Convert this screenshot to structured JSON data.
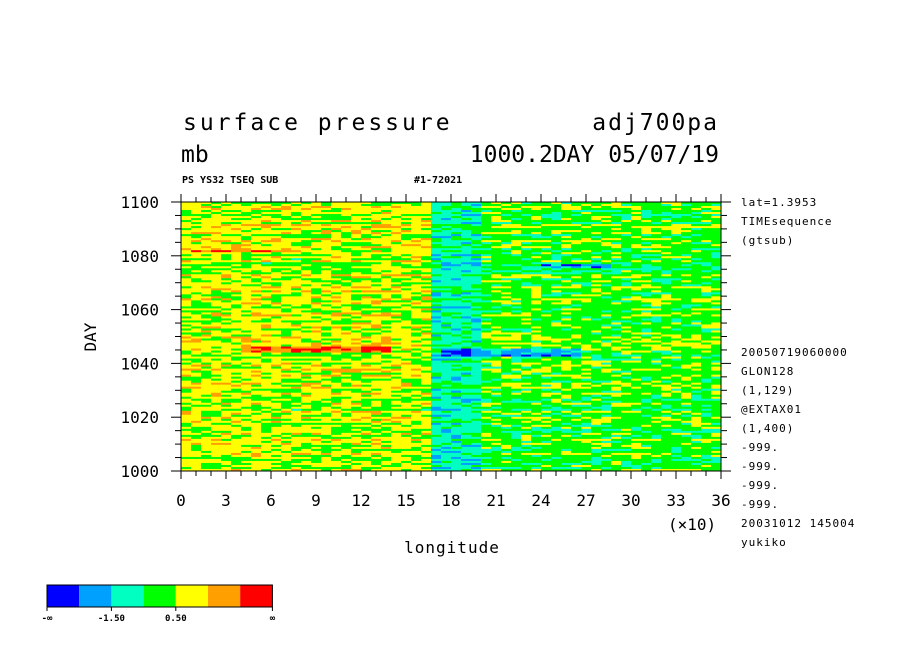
{
  "header": {
    "title": "surface pressure",
    "run_id": "adj700pa",
    "units": "mb",
    "info": "1000.2DAY 05/07/19",
    "tags": "PS YS32 TSEQ SUB",
    "code": "#1-72021"
  },
  "side_info": {
    "top": [
      "lat=1.3953",
      "TIMEsequence",
      "(gtsub)"
    ],
    "bottom": [
      "20050719060000",
      "GLON128",
      "(1,129)",
      "@EXTAX01",
      "(1,400)",
      "-999.",
      "-999.",
      "-999.",
      "-999.",
      "20031012 145004",
      "yukiko"
    ]
  },
  "chart_data": {
    "type": "heatmap",
    "xlabel": "longitude",
    "x_scale_note": "(×10)",
    "ylabel": "DAY",
    "xlim": [
      0,
      36
    ],
    "ylim": [
      1000,
      1100
    ],
    "x_ticks": [
      0,
      3,
      6,
      9,
      12,
      15,
      18,
      21,
      24,
      27,
      30,
      33,
      36
    ],
    "y_ticks": [
      1000,
      1020,
      1040,
      1060,
      1080,
      1100
    ],
    "colorbar": {
      "colors": [
        "#0000ff",
        "#00a0ff",
        "#00ffc0",
        "#00ff00",
        "#ffff00",
        "#ffa000",
        "#ff0000"
      ],
      "labels": [
        "-∞",
        "-1.50",
        "0.50",
        "∞"
      ]
    },
    "region_notes": {
      "warm_west": [
        0,
        17
      ],
      "cool_east": [
        17,
        36
      ],
      "negative_streak_day": 1044,
      "negative_column_lon": 18.5
    }
  }
}
